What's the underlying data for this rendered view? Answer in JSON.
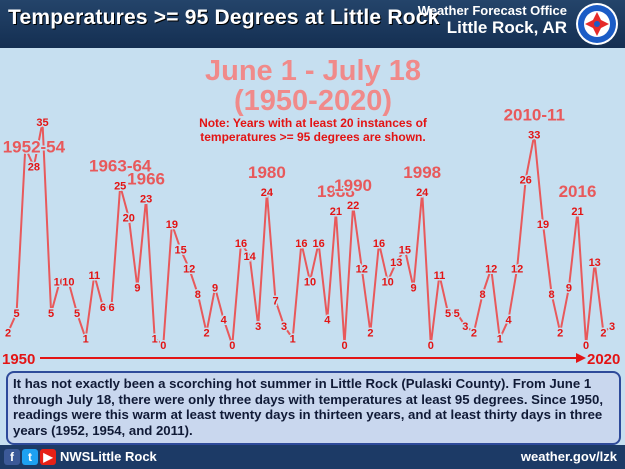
{
  "header": {
    "title": "Temperatures >= 95 Degrees at Little Rock",
    "office_line1": "Weather Forecast Office",
    "office_line2": "Little Rock, AR"
  },
  "chart_data": {
    "type": "line",
    "title": "June 1 - July 18",
    "subtitle": "(1950-2020)",
    "note_line1": "Note: Years with at least 20 instances of",
    "note_line2": "temperatures >= 95 degrees are shown.",
    "x_start_label": "1950",
    "x_end_label": "2020",
    "x": [
      1950,
      1951,
      1952,
      1953,
      1954,
      1955,
      1956,
      1957,
      1958,
      1959,
      1960,
      1961,
      1962,
      1963,
      1964,
      1965,
      1966,
      1967,
      1968,
      1969,
      1970,
      1971,
      1972,
      1973,
      1974,
      1975,
      1976,
      1977,
      1978,
      1979,
      1980,
      1981,
      1982,
      1983,
      1984,
      1985,
      1986,
      1987,
      1988,
      1989,
      1990,
      1991,
      1992,
      1993,
      1994,
      1995,
      1996,
      1997,
      1998,
      1999,
      2000,
      2001,
      2002,
      2003,
      2004,
      2005,
      2006,
      2007,
      2008,
      2009,
      2010,
      2011,
      2012,
      2013,
      2014,
      2015,
      2016,
      2017,
      2018,
      2019,
      2020
    ],
    "values": [
      2,
      5,
      31,
      28,
      35,
      5,
      10,
      10,
      5,
      1,
      11,
      6,
      6,
      25,
      20,
      9,
      23,
      1,
      0,
      19,
      15,
      12,
      8,
      2,
      9,
      4,
      0,
      16,
      14,
      3,
      24,
      7,
      3,
      1,
      16,
      10,
      16,
      4,
      21,
      0,
      22,
      12,
      2,
      16,
      10,
      13,
      15,
      9,
      24,
      0,
      11,
      5,
      5,
      3,
      2,
      8,
      12,
      1,
      4,
      12,
      26,
      33,
      19,
      8,
      2,
      9,
      21,
      0,
      13,
      2,
      3
    ],
    "era_labels": [
      {
        "text": "1952-54",
        "year": 1953
      },
      {
        "text": "1963-64",
        "year": 1963
      },
      {
        "text": "1966",
        "year": 1966
      },
      {
        "text": "1980",
        "year": 1980
      },
      {
        "text": "1988",
        "year": 1988
      },
      {
        "text": "1990",
        "year": 1990
      },
      {
        "text": "1998",
        "year": 1998
      },
      {
        "text": "2010-11",
        "year": 2011
      },
      {
        "text": "2016",
        "year": 2016
      }
    ],
    "ylim": [
      0,
      35
    ],
    "line_color": "#e8595b",
    "title_color": "#f08a8a",
    "note_color": "#e31414",
    "axis_color": "#e31414",
    "background": "#c6dff0"
  },
  "summary": "It has not exactly been a scorching hot summer in Little Rock (Pulaski County). From June 1 through July 18, there were only three days with temperatures at least 95 degrees. Since 1950, readings were this warm at least twenty days in thirteen years, and at least thirty days in three years (1952, 1954, and 2011).",
  "footer": {
    "facebook_icon": "f",
    "twitter_icon": "t",
    "youtube_icon": "▶",
    "handle": "NWSLittle Rock",
    "website": "weather.gov/lzk"
  }
}
